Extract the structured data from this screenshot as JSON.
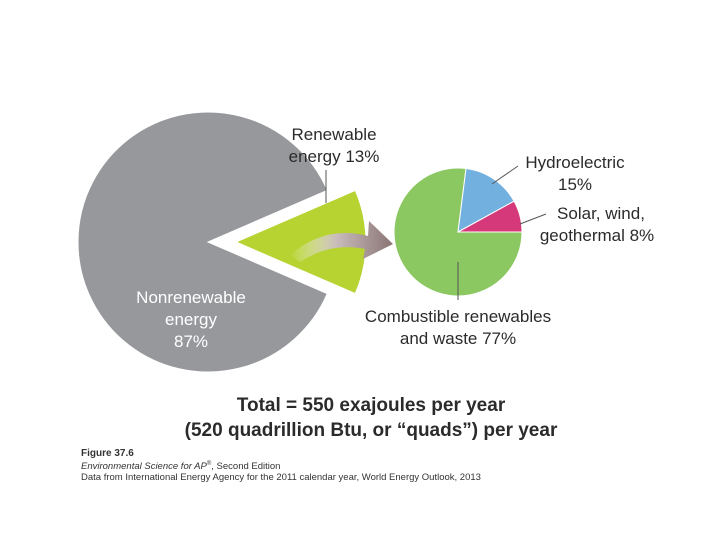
{
  "chart_data": [
    {
      "type": "pie",
      "categories": [
        "Nonrenewable energy",
        "Renewable energy"
      ],
      "values": [
        87,
        13
      ],
      "labels": {
        "nonrenewable": [
          "Nonrenewable",
          "energy",
          "87%"
        ],
        "renewable": [
          "Renewable",
          "energy  13%"
        ]
      },
      "colors": [
        "#96989b",
        "#b6d332"
      ]
    },
    {
      "type": "pie",
      "categories": [
        "Combustible renewables and waste",
        "Hydroelectric",
        "Solar, wind, geothermal"
      ],
      "values": [
        77,
        15,
        8
      ],
      "labels": {
        "hydro": [
          "Hydroelectric",
          "15%"
        ],
        "solar": [
          "Solar, wind,",
          "geothermal 8%"
        ],
        "combustible": [
          "Combustible renewables",
          "and waste 77%"
        ]
      },
      "colors": [
        "#8cc862",
        "#72b0e0",
        "#d6397a"
      ]
    }
  ],
  "total": {
    "line1": "Total = 550 exajoules per year",
    "line2": "(520 quadrillion Btu, or “quads”) per year"
  },
  "caption": {
    "figure": "Figure 37.6",
    "book_title": "Environmental Science for AP",
    "book_reg": "®",
    "book_edition": ", Second Edition",
    "source": "Data from International Energy Agency for the 2011 calendar year, World Energy Outlook, 2013"
  }
}
